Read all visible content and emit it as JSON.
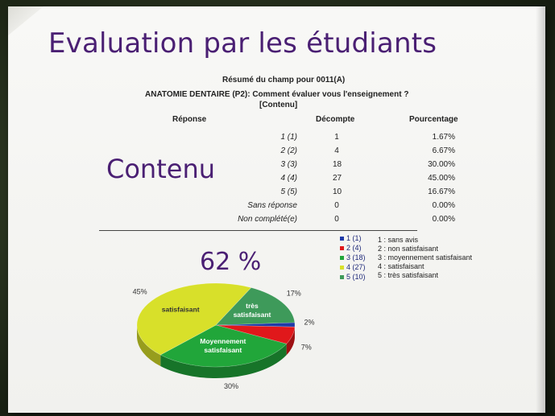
{
  "slide": {
    "title": "Evaluation par les étudiants",
    "side_label": "Contenu",
    "highlight_percent": "62 %"
  },
  "report": {
    "summary_heading": "Résumé du champ pour 0011(A)",
    "question": "ANATOMIE DENTAIRE (P2): Comment évaluer vous l'enseignement ?",
    "section": "[Contenu]",
    "columns": [
      "Réponse",
      "Décompte",
      "Pourcentage"
    ],
    "rows": [
      {
        "label": "1 (1)",
        "count": "1",
        "percent": "1.67%"
      },
      {
        "label": "2 (2)",
        "count": "4",
        "percent": "6.67%"
      },
      {
        "label": "3 (3)",
        "count": "18",
        "percent": "30.00%"
      },
      {
        "label": "4 (4)",
        "count": "27",
        "percent": "45.00%"
      },
      {
        "label": "5 (5)",
        "count": "10",
        "percent": "16.67%"
      },
      {
        "label": "Sans réponse",
        "count": "0",
        "percent": "0.00%"
      },
      {
        "label": "Non complété(e)",
        "count": "0",
        "percent": "0.00%"
      }
    ]
  },
  "chart_data": {
    "type": "pie",
    "categories": [
      "1 (1)",
      "2 (4)",
      "3 (18)",
      "4 (27)",
      "5 (10)"
    ],
    "values": [
      1.67,
      6.67,
      30.0,
      45.0,
      16.67
    ],
    "counts": [
      1,
      4,
      18,
      27,
      10
    ],
    "colors": [
      "#1f3aa8",
      "#e0181b",
      "#21a63a",
      "#d8e02a",
      "#3e9a5a"
    ],
    "slice_percent_labels": [
      "2%",
      "7%",
      "30%",
      "45%",
      "17%"
    ],
    "slice_texts": [
      "",
      "",
      "Moyennement satisfaisant",
      "satisfaisant",
      "très satisfaisant"
    ],
    "legend_placement": "top-right",
    "legend_items": [
      {
        "label": "1 (1)",
        "color": "#1f3aa8"
      },
      {
        "label": "2 (4)",
        "color": "#e0181b"
      },
      {
        "label": "3 (18)",
        "color": "#21a63a"
      },
      {
        "label": "4 (27)",
        "color": "#d8e02a"
      },
      {
        "label": "5 (10)",
        "color": "#3e9a5a"
      }
    ],
    "scale_descriptions": [
      "1 : sans avis",
      "2 : non satisfaisant",
      "3 : moyennement satisfaisant",
      "4 : satisfaisant",
      "5 : très satisfaisant"
    ]
  }
}
